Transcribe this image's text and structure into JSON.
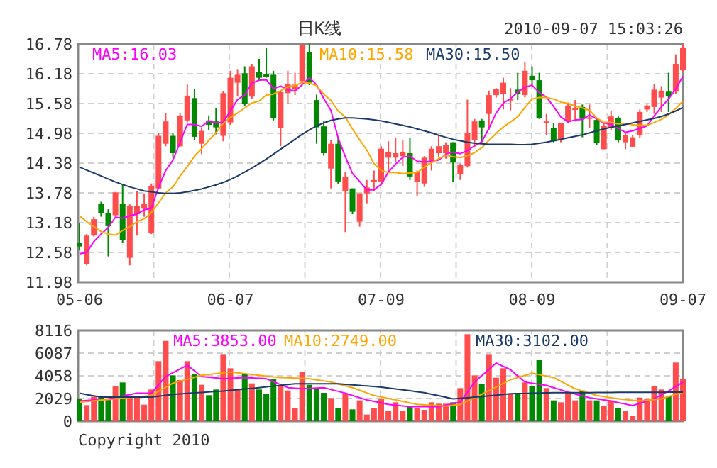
{
  "chart_data": [
    {
      "type": "candlestick",
      "title": "日K线",
      "annotations": [
        "2010-09-07 15:03:26"
      ],
      "categories": [
        "05-06",
        null,
        null,
        null,
        null,
        null,
        null,
        null,
        null,
        null,
        null,
        null,
        null,
        null,
        null,
        null,
        null,
        null,
        null,
        null,
        null,
        "06-07",
        null,
        null,
        null,
        null,
        null,
        null,
        null,
        null,
        null,
        null,
        null,
        null,
        null,
        null,
        null,
        null,
        null,
        null,
        null,
        null,
        "07-09",
        null,
        null,
        null,
        null,
        null,
        null,
        null,
        null,
        null,
        null,
        null,
        null,
        null,
        null,
        null,
        null,
        null,
        null,
        null,
        null,
        "08-09",
        null,
        null,
        null,
        null,
        null,
        null,
        null,
        null,
        null,
        null,
        null,
        null,
        null,
        null,
        null,
        null,
        null,
        null,
        null,
        null,
        "09-07"
      ],
      "ohlc": [
        [
          12.78,
          13.18,
          12.62,
          12.7
        ],
        [
          12.35,
          12.95,
          12.32,
          12.92
        ],
        [
          12.92,
          13.3,
          12.9,
          13.25
        ],
        [
          13.56,
          13.6,
          13.3,
          13.38
        ],
        [
          13.37,
          13.45,
          12.5,
          13.11
        ],
        [
          13.33,
          13.8,
          13.3,
          13.79
        ],
        [
          13.56,
          13.96,
          12.78,
          12.83
        ],
        [
          12.47,
          13.55,
          12.32,
          13.51
        ],
        [
          13.35,
          13.82,
          12.92,
          13.51
        ],
        [
          13.46,
          13.77,
          13.3,
          13.56
        ],
        [
          12.97,
          13.97,
          12.95,
          13.92
        ],
        [
          13.87,
          14.98,
          13.85,
          14.93
        ],
        [
          14.77,
          15.39,
          14.72,
          15.22
        ],
        [
          14.93,
          14.98,
          14.5,
          14.58
        ],
        [
          14.72,
          15.39,
          14.7,
          15.34
        ],
        [
          15.24,
          15.96,
          15.2,
          15.74
        ],
        [
          15.69,
          15.88,
          14.85,
          14.91
        ],
        [
          14.77,
          15.1,
          14.56,
          15.03
        ],
        [
          15.24,
          15.34,
          15.05,
          15.15
        ],
        [
          15.22,
          15.48,
          14.96,
          15.1
        ],
        [
          14.93,
          15.83,
          14.82,
          15.79
        ],
        [
          15.2,
          16.24,
          15.15,
          16.1
        ],
        [
          16.0,
          16.26,
          15.72,
          16.16
        ],
        [
          16.19,
          16.33,
          15.53,
          15.58
        ],
        [
          15.72,
          16.38,
          15.67,
          16.33
        ],
        [
          16.21,
          16.48,
          16.05,
          16.1
        ],
        [
          16.18,
          16.71,
          16.1,
          16.11
        ],
        [
          16.16,
          16.24,
          15.24,
          15.29
        ],
        [
          15.08,
          15.85,
          14.72,
          15.81
        ],
        [
          15.79,
          16.24,
          15.58,
          15.97
        ],
        [
          15.86,
          16.2,
          15.75,
          15.96
        ],
        [
          16.03,
          16.78,
          15.98,
          16.76
        ],
        [
          16.62,
          16.78,
          15.95,
          16.0
        ],
        [
          15.65,
          15.76,
          14.77,
          15.1
        ],
        [
          15.12,
          15.22,
          14.53,
          14.58
        ],
        [
          14.27,
          14.85,
          13.87,
          14.77
        ],
        [
          14.77,
          14.89,
          13.96,
          14.01
        ],
        [
          13.82,
          14.2,
          12.99,
          14.11
        ],
        [
          13.87,
          13.87,
          13.35,
          13.4
        ],
        [
          13.2,
          13.77,
          13.1,
          13.77
        ],
        [
          13.77,
          14.04,
          13.57,
          13.89
        ],
        [
          14.0,
          14.23,
          13.82,
          14.04
        ],
        [
          14.01,
          14.72,
          13.96,
          14.67
        ],
        [
          14.49,
          14.82,
          14.2,
          14.61
        ],
        [
          14.49,
          14.89,
          14.39,
          14.58
        ],
        [
          14.52,
          14.85,
          14.32,
          14.61
        ],
        [
          14.58,
          14.89,
          14.04,
          14.11
        ],
        [
          14.0,
          14.23,
          13.71,
          14.2
        ],
        [
          13.97,
          14.52,
          13.9,
          14.49
        ],
        [
          14.39,
          14.72,
          14.23,
          14.67
        ],
        [
          14.58,
          14.93,
          14.51,
          14.72
        ],
        [
          14.58,
          14.8,
          14.47,
          14.74
        ],
        [
          14.8,
          14.8,
          14.0,
          14.39
        ],
        [
          14.15,
          14.37,
          14.04,
          14.34
        ],
        [
          14.32,
          15.66,
          14.29,
          14.98
        ],
        [
          14.85,
          15.27,
          14.7,
          15.22
        ],
        [
          15.24,
          15.27,
          14.8,
          15.1
        ],
        [
          15.37,
          15.84,
          15.04,
          15.75
        ],
        [
          15.75,
          15.89,
          15.7,
          15.88
        ],
        [
          15.77,
          16.1,
          15.46,
          16.0
        ],
        [
          15.65,
          15.89,
          15.44,
          15.67
        ],
        [
          15.86,
          16.2,
          15.65,
          15.77
        ],
        [
          15.75,
          16.41,
          15.7,
          16.24
        ],
        [
          16.14,
          16.33,
          15.94,
          16.05
        ],
        [
          16.05,
          16.2,
          15.27,
          15.29
        ],
        [
          15.2,
          15.37,
          14.94,
          15.22
        ],
        [
          15.08,
          15.18,
          14.8,
          14.82
        ],
        [
          14.86,
          15.18,
          14.8,
          15.18
        ],
        [
          15.22,
          15.6,
          15.18,
          15.54
        ],
        [
          15.46,
          15.65,
          15.22,
          15.48
        ],
        [
          15.51,
          15.56,
          14.9,
          15.27
        ],
        [
          15.27,
          15.56,
          15.08,
          15.3
        ],
        [
          15.25,
          15.27,
          14.75,
          14.78
        ],
        [
          14.66,
          15.18,
          14.66,
          15.13
        ],
        [
          15.08,
          15.44,
          15.04,
          15.32
        ],
        [
          15.29,
          15.32,
          14.8,
          14.85
        ],
        [
          14.8,
          14.99,
          14.66,
          14.94
        ],
        [
          14.71,
          14.94,
          14.71,
          14.9
        ],
        [
          14.94,
          15.46,
          14.89,
          15.41
        ],
        [
          15.46,
          15.56,
          15.41,
          15.54
        ],
        [
          15.51,
          15.98,
          15.37,
          15.86
        ],
        [
          15.7,
          15.93,
          15.41,
          15.84
        ],
        [
          15.82,
          16.2,
          15.41,
          15.73
        ],
        [
          15.82,
          16.57,
          15.77,
          16.38
        ],
        [
          16.25,
          16.76,
          16.22,
          16.71
        ]
      ],
      "series": [
        {
          "type": "line",
          "name": "MA5:16.03",
          "color": "#ff00ff",
          "values": [
            12.55,
            12.58,
            12.8,
            12.95,
            13.08,
            13.29,
            13.27,
            13.32,
            13.35,
            13.44,
            13.47,
            13.89,
            14.23,
            14.44,
            14.8,
            15.16,
            15.16,
            15.12,
            15.23,
            15.19,
            15.2,
            15.43,
            15.66,
            15.75,
            15.99,
            16.05,
            16.06,
            15.88,
            15.93,
            15.86,
            15.83,
            15.96,
            16.1,
            15.96,
            15.68,
            15.44,
            14.89,
            14.51,
            14.17,
            14.01,
            13.84,
            13.84,
            13.95,
            14.2,
            14.36,
            14.5,
            14.52,
            14.42,
            14.4,
            14.42,
            14.44,
            14.56,
            14.6,
            14.57,
            14.63,
            14.73,
            14.81,
            15.08,
            15.39,
            15.59,
            15.68,
            15.81,
            15.91,
            15.95,
            15.8,
            15.71,
            15.52,
            15.31,
            15.21,
            15.25,
            15.26,
            15.35,
            15.27,
            15.19,
            15.16,
            15.08,
            15.0,
            15.03,
            15.08,
            15.13,
            15.33,
            15.51,
            15.67,
            15.87,
            16.13
          ]
        },
        {
          "type": "line",
          "name": "MA10:15.58",
          "color": "#ffa500",
          "values": [
            13.32,
            13.2,
            13.1,
            13.0,
            12.95,
            12.93,
            13.02,
            13.1,
            13.2,
            13.26,
            13.38,
            13.58,
            13.78,
            13.9,
            14.12,
            14.31,
            14.52,
            14.67,
            14.84,
            14.99,
            15.18,
            15.3,
            15.39,
            15.49,
            15.59,
            15.63,
            15.75,
            15.77,
            15.84,
            15.92,
            15.94,
            16.01,
            15.99,
            15.94,
            15.77,
            15.64,
            15.43,
            15.31,
            15.07,
            14.85,
            14.64,
            14.37,
            14.23,
            14.19,
            14.19,
            14.17,
            14.18,
            14.19,
            14.3,
            14.39,
            14.47,
            14.54,
            14.51,
            14.49,
            14.53,
            14.59,
            14.69,
            14.84,
            14.98,
            15.11,
            15.21,
            15.31,
            15.5,
            15.67,
            15.7,
            15.7,
            15.67,
            15.61,
            15.58,
            15.53,
            15.49,
            15.44,
            15.29,
            15.2,
            15.2,
            15.17,
            15.18,
            15.15,
            15.14,
            15.14,
            15.2,
            15.26,
            15.35,
            15.48,
            15.63
          ]
        },
        {
          "type": "line",
          "name": "MA30:15.50",
          "color": "#1a3a6b",
          "values": [
            14.3,
            14.24,
            14.18,
            14.12,
            14.06,
            14.0,
            13.95,
            13.9,
            13.86,
            13.82,
            13.8,
            13.78,
            13.77,
            13.77,
            13.78,
            13.8,
            13.83,
            13.86,
            13.9,
            13.94,
            13.99,
            14.05,
            14.12,
            14.2,
            14.28,
            14.37,
            14.46,
            14.56,
            14.66,
            14.76,
            14.86,
            14.96,
            15.05,
            15.13,
            15.19,
            15.24,
            15.27,
            15.29,
            15.29,
            15.28,
            15.27,
            15.25,
            15.23,
            15.2,
            15.17,
            15.14,
            15.11,
            15.07,
            15.03,
            14.99,
            14.94,
            14.9,
            14.86,
            14.83,
            14.8,
            14.78,
            14.77,
            14.76,
            14.76,
            14.76,
            14.76,
            14.75,
            14.75,
            14.76,
            14.78,
            14.8,
            14.83,
            14.86,
            14.89,
            14.92,
            14.95,
            14.99,
            15.03,
            15.07,
            15.1,
            15.13,
            15.16,
            15.19,
            15.22,
            15.25,
            15.28,
            15.32,
            15.37,
            15.43,
            15.5
          ]
        }
      ],
      "ylim": [
        11.98,
        16.78
      ],
      "yticks": [
        11.98,
        12.58,
        13.18,
        13.78,
        14.38,
        14.98,
        15.58,
        16.18,
        16.78
      ],
      "grid": true,
      "legend": "top"
    },
    {
      "type": "bar",
      "annotations": [
        "Copyright 2010"
      ],
      "categories": [
        null,
        null,
        null,
        null,
        null,
        null,
        null,
        null,
        null,
        null,
        null,
        null,
        null,
        null,
        null,
        null,
        null,
        null,
        null,
        null,
        null,
        null,
        null,
        null,
        null,
        null,
        null,
        null,
        null,
        null,
        null,
        null,
        null,
        null,
        null,
        null,
        null,
        null,
        null,
        null,
        null,
        null,
        null,
        null,
        null,
        null,
        null,
        null,
        null,
        null,
        null,
        null,
        null,
        null,
        null,
        null,
        null,
        null,
        null,
        null,
        null,
        null,
        null,
        null,
        null,
        null,
        null,
        null,
        null,
        null,
        null,
        null,
        null,
        null,
        null,
        null,
        null,
        null,
        null,
        null,
        null,
        null,
        null,
        null,
        null
      ],
      "values": [
        1987,
        1437,
        2198,
        2198,
        1987,
        3128,
        3466,
        2113,
        2113,
        1479,
        2832,
        5368,
        7186,
        4100,
        3677,
        5368,
        4227,
        3255,
        2325,
        2832,
        6002,
        4734,
        2832,
        4227,
        3382,
        2832,
        2409,
        3804,
        3128,
        2748,
        1141,
        4396,
        3255,
        2959,
        2536,
        2071,
        1141,
        2409,
        1057,
        1860,
        592,
        1141,
        1987,
        930,
        1691,
        930,
        1353,
        1141,
        1014,
        1691,
        1564,
        1564,
        1691,
        2959,
        7778,
        4100,
        3339,
        6002,
        3889,
        4734,
        2409,
        2536,
        3466,
        3128,
        5495,
        2959,
        1860,
        1691,
        2536,
        1860,
        2748,
        1860,
        1860,
        1353,
        1860,
        1141,
        930,
        507,
        2113,
        1987,
        3128,
        2832,
        2283,
        5242,
        3804
      ],
      "colors": [
        "#008800",
        "#ff4d4d",
        "#ff4d4d",
        "#008800",
        "#008800",
        "#ff4d4d",
        "#008800",
        "#ff4d4d",
        "#ff4d4d",
        "#ff4d4d",
        "#ff4d4d",
        "#ff4d4d",
        "#ff4d4d",
        "#008800",
        "#ff4d4d",
        "#ff4d4d",
        "#008800",
        "#ff4d4d",
        "#008800",
        "#008800",
        "#ff4d4d",
        "#ff4d4d",
        "#ff4d4d",
        "#008800",
        "#ff4d4d",
        "#008800",
        "#008800",
        "#008800",
        "#ff4d4d",
        "#ff4d4d",
        "#ff4d4d",
        "#ff4d4d",
        "#008800",
        "#008800",
        "#008800",
        "#ff4d4d",
        "#008800",
        "#ff4d4d",
        "#008800",
        "#ff4d4d",
        "#ff4d4d",
        "#ff4d4d",
        "#ff4d4d",
        "#ff4d4d",
        "#ff4d4d",
        "#ff4d4d",
        "#008800",
        "#ff4d4d",
        "#ff4d4d",
        "#ff4d4d",
        "#ff4d4d",
        "#ff4d4d",
        "#008800",
        "#ff4d4d",
        "#ff4d4d",
        "#ff4d4d",
        "#008800",
        "#ff4d4d",
        "#ff4d4d",
        "#ff4d4d",
        "#ff4d4d",
        "#008800",
        "#ff4d4d",
        "#008800",
        "#008800",
        "#ff4d4d",
        "#008800",
        "#ff4d4d",
        "#ff4d4d",
        "#ff4d4d",
        "#008800",
        "#ff4d4d",
        "#008800",
        "#ff4d4d",
        "#ff4d4d",
        "#008800",
        "#ff4d4d",
        "#ff4d4d",
        "#ff4d4d",
        "#ff4d4d",
        "#ff4d4d",
        "#ff4d4d",
        "#008800",
        "#ff4d4d",
        "#ff4d4d"
      ],
      "series": [
        {
          "type": "line",
          "name": "MA5:3853.00",
          "color": "#ff00ff",
          "values": [
            1800,
            1850,
            1900,
            1950,
            2000,
            2125,
            2250,
            2375,
            2500,
            2500,
            2500,
            3250,
            4000,
            4333,
            4667,
            5000,
            4500,
            4000,
            3930,
            3870,
            3800,
            3830,
            3870,
            3900,
            3870,
            3830,
            3800,
            3530,
            3270,
            3000,
            2950,
            2900,
            2930,
            2970,
            3000,
            2830,
            2670,
            2500,
            2300,
            2100,
            1900,
            1770,
            1630,
            1500,
            1430,
            1370,
            1300,
            1300,
            1300,
            1300,
            1300,
            1430,
            1570,
            1700,
            2600,
            3500,
            4070,
            4630,
            5200,
            4900,
            4600,
            4050,
            3500,
            3400,
            3300,
            3200,
            3000,
            2800,
            2600,
            2430,
            2270,
            2100,
            2000,
            1900,
            1800,
            1670,
            1530,
            1400,
            1600,
            1800,
            2000,
            2350,
            2700,
            3100,
            3500
          ]
        },
        {
          "type": "line",
          "name": "MA10:2749.00",
          "color": "#ffa500",
          "values": [
            1700,
            1760,
            1820,
            1880,
            1940,
            2000,
            2060,
            2120,
            2180,
            2240,
            2300,
            2670,
            3030,
            3400,
            3580,
            3750,
            3930,
            4100,
            4180,
            4250,
            4330,
            4400,
            4330,
            4250,
            4180,
            4100,
            4030,
            3970,
            3900,
            3880,
            3850,
            3830,
            3800,
            3700,
            3600,
            3500,
            3330,
            3170,
            3000,
            2770,
            2530,
            2300,
            2170,
            2030,
            1900,
            1770,
            1630,
            1500,
            1460,
            1430,
            1390,
            1350,
            1430,
            1500,
            1800,
            2100,
            2400,
            2730,
            3050,
            3380,
            3700,
            3900,
            4100,
            4300,
            4170,
            4030,
            3900,
            3570,
            3230,
            2900,
            2700,
            2500,
            2300,
            2200,
            2100,
            2000,
            1930,
            1870,
            1800,
            1870,
            1930,
            2000,
            2200,
            2400,
            2600
          ]
        },
        {
          "type": "line",
          "name": "MA30:3102.00",
          "color": "#1a3a6b",
          "values": [
            2500,
            2380,
            2270,
            2150,
            2150,
            2150,
            2150,
            2150,
            2150,
            2150,
            2150,
            2230,
            2320,
            2400,
            2440,
            2490,
            2530,
            2570,
            2610,
            2660,
            2700,
            2760,
            2820,
            2880,
            2940,
            3000,
            3070,
            3140,
            3210,
            3280,
            3350,
            3350,
            3350,
            3350,
            3350,
            3350,
            3350,
            3300,
            3250,
            3200,
            3150,
            3100,
            3050,
            2970,
            2880,
            2800,
            2720,
            2630,
            2550,
            2410,
            2280,
            2140,
            2000,
            2050,
            2100,
            2150,
            2210,
            2270,
            2330,
            2390,
            2450,
            2470,
            2480,
            2500,
            2520,
            2530,
            2550,
            2550,
            2550,
            2560,
            2560,
            2560,
            2570,
            2570,
            2570,
            2580,
            2580,
            2580,
            2580,
            2590,
            2590,
            2590,
            2600,
            2600,
            2600
          ]
        }
      ],
      "ylim": [
        0,
        8116
      ],
      "yticks": [
        0,
        2029,
        4058,
        6087,
        8116
      ],
      "grid": true,
      "legend": "top",
      "tick_labels": "y"
    }
  ]
}
